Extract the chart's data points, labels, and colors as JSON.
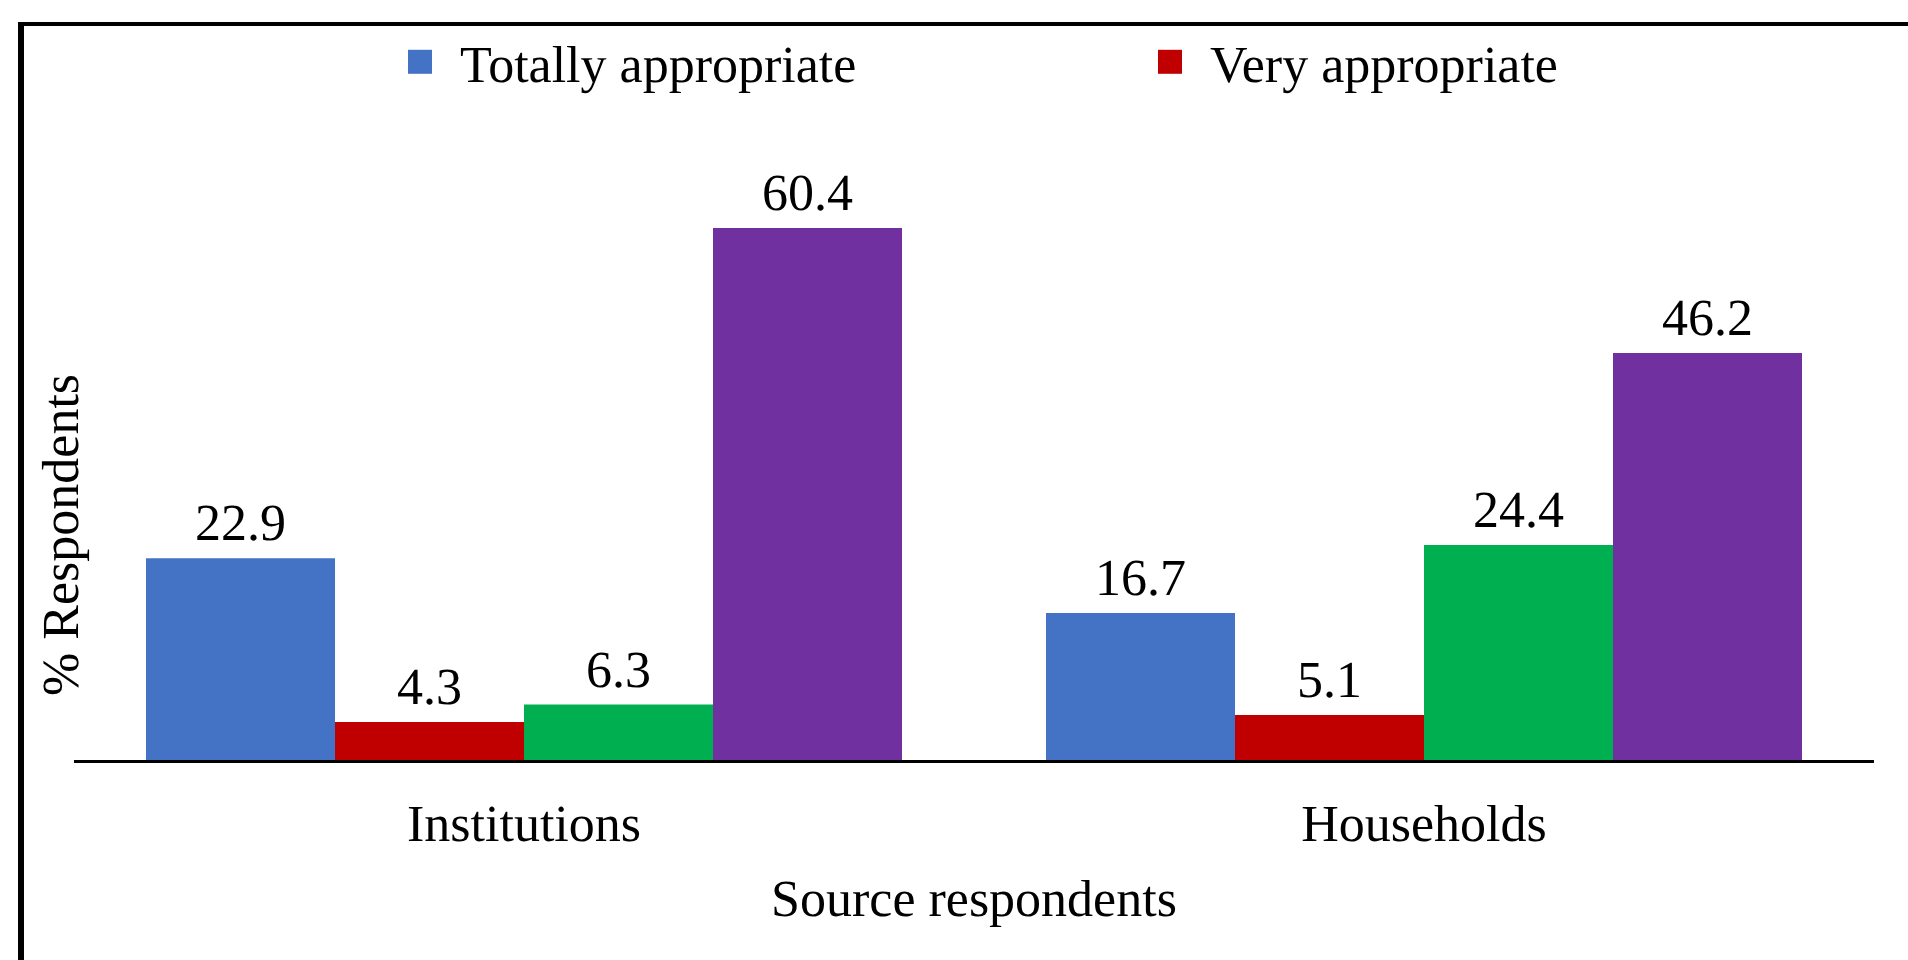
{
  "chart_data": {
    "type": "bar",
    "xlabel": "Source respondents",
    "ylabel": "% Respondents",
    "categories": [
      "Institutions",
      "Households"
    ],
    "series": [
      {
        "name": "Totally appropriate",
        "color": "#4472c4",
        "values": [
          22.9,
          16.7
        ]
      },
      {
        "name": "Very appropriate",
        "color": "#c00000",
        "values": [
          4.3,
          5.1
        ]
      },
      {
        "color": "#00b050",
        "values": [
          6.3,
          24.4
        ]
      },
      {
        "color": "#7030a0",
        "values": [
          60.4,
          46.2
        ]
      }
    ],
    "tick_labels": "x",
    "legend": "top",
    "data_labels": true
  }
}
